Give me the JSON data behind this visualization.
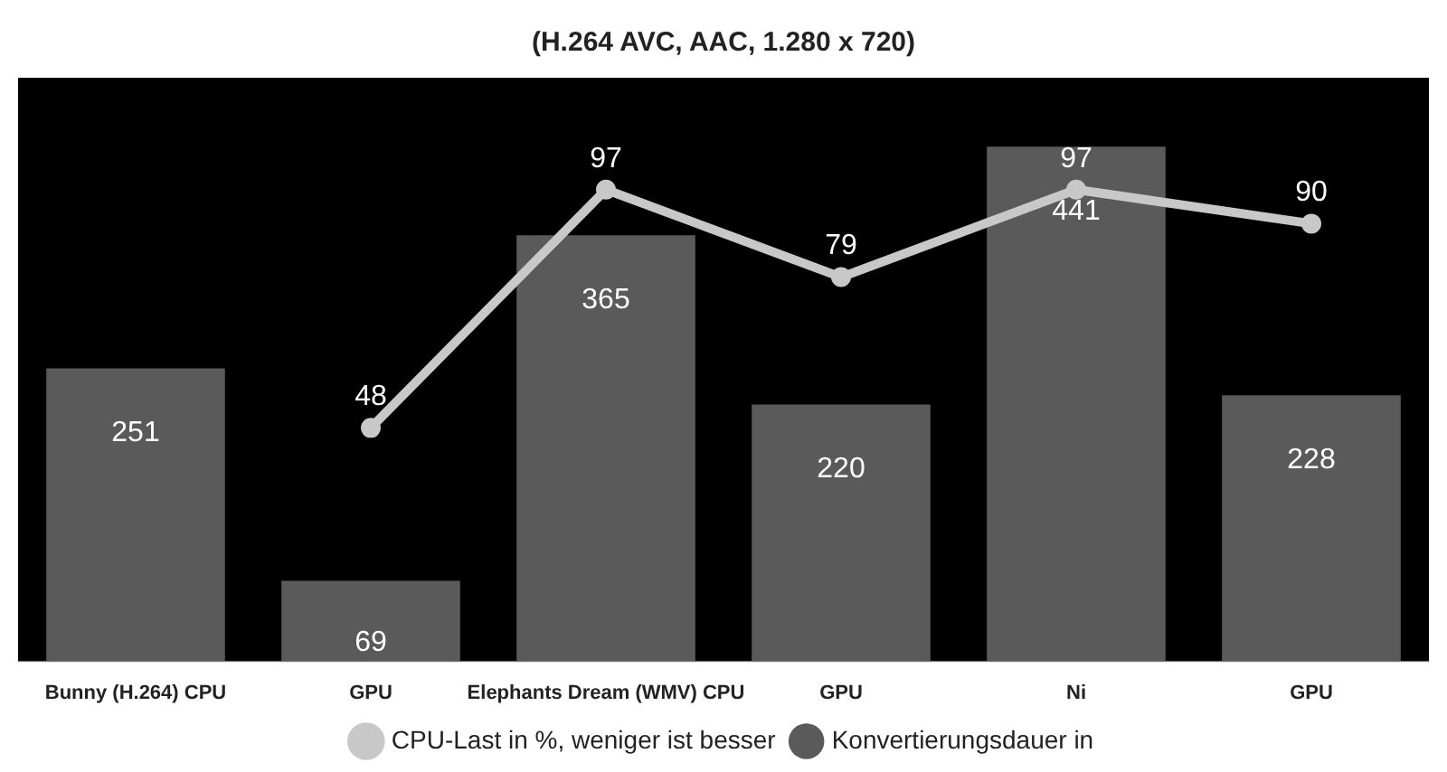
{
  "chart_data": {
    "type": "bar",
    "title": "(H.264 AVC, AAC, 1.280 x 720)",
    "categories": [
      "Bunny (H.264) CPU",
      "GPU",
      "Elephants Dream (WMV) CPU",
      "GPU",
      "Ni",
      "GPU"
    ],
    "series": [
      {
        "name": "CPU-Last in %, weniger ist besser",
        "type": "line",
        "axis": "y2",
        "color": "#c8c8c8",
        "values": [
          null,
          48,
          97,
          79,
          97,
          90
        ]
      },
      {
        "name": "Konvertierungsdauer in",
        "color": "#5a5a5a",
        "values": [
          251,
          69,
          365,
          220,
          441,
          228
        ]
      }
    ],
    "data_labels": true,
    "legend": "bottom",
    "marker": "circle"
  }
}
